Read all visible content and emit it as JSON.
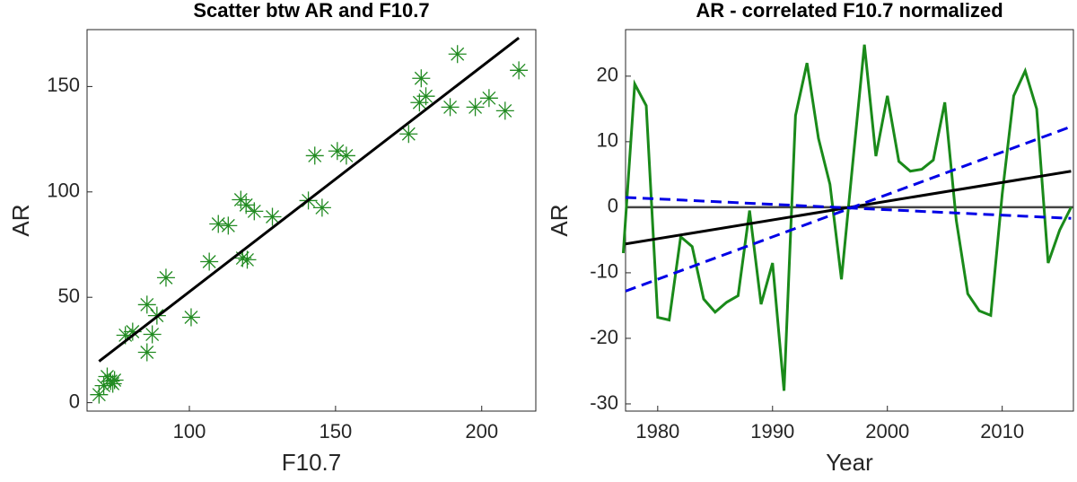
{
  "chart_data": [
    {
      "type": "scatter",
      "title": "Scatter btw AR and F10.7",
      "xlabel": "F10.7",
      "ylabel": "AR",
      "color": "#228b22",
      "marker": "*",
      "x": [
        69.1,
        70.7,
        71.9,
        73.1,
        74.4,
        73.8,
        78.1,
        80.6,
        85.5,
        85.5,
        87.3,
        88.9,
        92,
        100.6,
        106.8,
        109.9,
        113.3,
        117.6,
        118.2,
        119.8,
        119.4,
        122.2,
        128.4,
        140.7,
        142.9,
        145.4,
        150.6,
        153.7,
        175,
        179.3,
        178.7,
        180.9,
        189.2,
        191.7,
        197.8,
        202.5,
        208,
        212.7
      ],
      "y": [
        3.8,
        8.1,
        12.4,
        10.2,
        10.7,
        9,
        32,
        33.7,
        46.5,
        23.9,
        32.4,
        41.3,
        59.3,
        40.5,
        66.9,
        84.8,
        84,
        96.3,
        68.6,
        67.8,
        93.8,
        90.8,
        88.2,
        95.9,
        117.2,
        92.5,
        119.4,
        117.2,
        127.5,
        153.9,
        142.4,
        145.4,
        140.2,
        165.4,
        140.2,
        144.5,
        138.5,
        157.7
      ],
      "fit": {
        "color": "#000000",
        "x": [
          69.1,
          212.7
        ],
        "y": [
          19.6,
          173.1
        ]
      },
      "xlim": [
        65,
        218.5
      ],
      "ylim": [
        -4,
        177
      ],
      "xticks": [
        100,
        150,
        200
      ],
      "yticks": [
        0,
        50,
        100,
        150
      ]
    },
    {
      "type": "line",
      "title": "AR - correlated F10.7 normalized",
      "xlabel": "Year",
      "ylabel": "AR",
      "x": [
        1977,
        1978,
        1979,
        1980,
        1981,
        1982,
        1983,
        1984,
        1985,
        1986,
        1987,
        1988,
        1989,
        1990,
        1991,
        1992,
        1993,
        1994,
        1995,
        1996,
        1997,
        1998,
        1999,
        2000,
        2001,
        2002,
        2003,
        2004,
        2005,
        2006,
        2007,
        2008,
        2009,
        2010,
        2011,
        2012,
        2013,
        2014,
        2015,
        2016
      ],
      "series": [
        {
          "color": "#1a8a1a",
          "values": [
            -7,
            18.8,
            15.5,
            -16.8,
            -17.2,
            -4.5,
            -6,
            -14,
            -16,
            -14.5,
            -13.5,
            -0.5,
            -14.8,
            -8.5,
            -28,
            14,
            22,
            10.5,
            3.5,
            -11,
            7,
            24.8,
            7.8,
            17,
            7,
            5.5,
            5.8,
            7.2,
            16,
            -2,
            -13.2,
            -15.8,
            -16.5,
            2,
            17,
            20.8,
            15,
            -8.5,
            -3.5,
            0
          ]
        }
      ],
      "reference_line": {
        "value": 0,
        "color": "#444444"
      },
      "trend": {
        "color": "#000000",
        "x": [
          1977.2,
          2016
        ],
        "y": [
          -5.6,
          5.5
        ]
      },
      "bounds": [
        {
          "color": "#0000e6",
          "x": [
            1977.2,
            2016
          ],
          "y": [
            -12.8,
            12.3
          ]
        },
        {
          "color": "#0000e6",
          "x": [
            1977.2,
            2016
          ],
          "y": [
            1.5,
            -1.7
          ]
        }
      ],
      "xlim": [
        1977.2,
        2016.2
      ],
      "ylim": [
        -31.1,
        27.1
      ],
      "xticks": [
        1980,
        1990,
        2000,
        2010
      ],
      "yticks": [
        -30,
        -20,
        -10,
        0,
        10,
        20
      ]
    }
  ]
}
